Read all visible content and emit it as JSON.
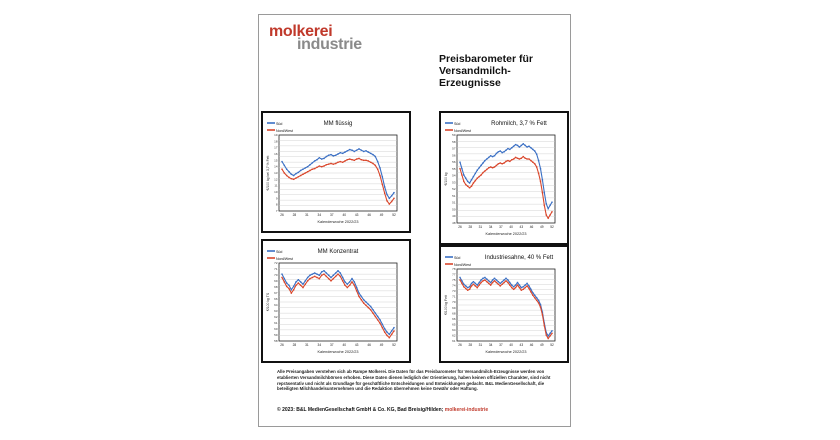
{
  "logo": {
    "line1": "molkerei",
    "line2": "industrie"
  },
  "title": "Preisbarometer für Versandmilch-Erzeugnisse",
  "legend": {
    "south": "Süd",
    "northwest": "Nord/West"
  },
  "colors": {
    "south": "#3a6fc4",
    "northwest": "#d9462b",
    "brand": "#c0392b"
  },
  "charts": [
    {
      "title": "MM flüssig",
      "ylabel": "€/100 kg bei 3,7 % Fett",
      "xlabel": "Kalenderwoche 2022/23",
      "yticks": [
        "19",
        "18",
        "17",
        "16",
        "15",
        "14",
        "13",
        "12",
        "11",
        "10",
        "9",
        "8",
        "7"
      ],
      "xticks": [
        "26",
        "28",
        "31",
        "34",
        "37",
        "40",
        "43",
        "46",
        "49",
        "52"
      ],
      "south": [
        14.8,
        14.2,
        13.6,
        13.2,
        12.8,
        12.6,
        12.9,
        13.1,
        13.4,
        13.6,
        13.8,
        14.0,
        14.3,
        14.6,
        14.9,
        15.1,
        15.4,
        15.2,
        15.3,
        15.6,
        15.8,
        15.9,
        15.7,
        15.8,
        16.0,
        16.2,
        16.1,
        16.3,
        16.5,
        16.7,
        16.6,
        16.4,
        16.6,
        16.8,
        16.6,
        16.4,
        16.5,
        16.3,
        16.1,
        15.9,
        15.6,
        14.8,
        13.8,
        12.4,
        10.8,
        9.6,
        9.0,
        9.4,
        9.9
      ],
      "northwest": [
        13.6,
        13.0,
        12.6,
        12.3,
        12.1,
        12.0,
        12.2,
        12.4,
        12.6,
        12.8,
        13.0,
        13.2,
        13.4,
        13.6,
        13.7,
        13.9,
        14.1,
        14.0,
        14.1,
        14.3,
        14.4,
        14.5,
        14.4,
        14.5,
        14.7,
        14.8,
        14.7,
        14.9,
        15.1,
        15.2,
        15.1,
        15.0,
        15.2,
        15.3,
        15.1,
        15.0,
        15.0,
        14.9,
        14.7,
        14.5,
        14.2,
        13.6,
        12.6,
        11.2,
        9.8,
        8.6,
        8.1,
        8.5,
        9.0
      ],
      "ymin": 7,
      "ymax": 19
    },
    {
      "title": "Rohmilch, 3,7 % Fett",
      "ylabel": "€/100 kg",
      "xlabel": "Kalenderwoche 2022/23",
      "yticks": [],
      "xticks": [
        "26",
        "28",
        "31",
        "34",
        "37",
        "40",
        "43",
        "46",
        "49",
        "52"
      ],
      "south": [
        55.6,
        54.8,
        54.0,
        53.6,
        53.2,
        53.0,
        53.4,
        53.8,
        54.2,
        54.6,
        54.9,
        55.2,
        55.5,
        55.8,
        56.0,
        56.2,
        56.4,
        56.3,
        56.4,
        56.7,
        56.9,
        57.0,
        56.8,
        56.9,
        57.1,
        57.3,
        57.2,
        57.4,
        57.6,
        57.8,
        57.7,
        57.5,
        57.7,
        57.9,
        57.7,
        57.5,
        57.6,
        57.4,
        57.2,
        57.0,
        56.6,
        55.8,
        54.8,
        53.4,
        51.8,
        50.4,
        49.8,
        50.2,
        50.6
      ],
      "northwest": [
        54.8,
        54.0,
        53.2,
        52.8,
        52.6,
        52.4,
        52.6,
        53.0,
        53.3,
        53.6,
        53.8,
        54.0,
        54.3,
        54.5,
        54.7,
        54.9,
        55.0,
        54.9,
        55.0,
        55.2,
        55.4,
        55.5,
        55.4,
        55.5,
        55.7,
        55.8,
        55.7,
        55.9,
        56.0,
        56.2,
        56.1,
        56.0,
        56.1,
        56.3,
        56.1,
        56.0,
        56.0,
        55.8,
        55.6,
        55.4,
        55.0,
        54.2,
        53.2,
        51.8,
        50.2,
        49.0,
        48.6,
        49.0,
        49.4
      ],
      "ymin": 48,
      "ymax": 59
    },
    {
      "title": "MM Konzentrat",
      "ylabel": "€/100 kg TS",
      "xlabel": "Kalenderwoche 2022/23",
      "yticks": [],
      "xticks": [
        "26",
        "28",
        "31",
        "34",
        "37",
        "40",
        "43",
        "46",
        "49",
        "52"
      ],
      "south": [
        70.0,
        69.2,
        68.4,
        68.0,
        67.2,
        67.8,
        68.6,
        69.0,
        68.6,
        68.2,
        68.8,
        69.4,
        69.8,
        70.0,
        70.2,
        70.0,
        69.8,
        70.4,
        70.6,
        70.2,
        69.8,
        69.4,
        69.8,
        70.2,
        70.6,
        70.2,
        69.4,
        68.6,
        68.2,
        68.6,
        69.2,
        68.6,
        67.6,
        66.6,
        66.0,
        65.4,
        65.0,
        64.6,
        64.2,
        63.6,
        63.0,
        62.4,
        61.8,
        61.0,
        60.2,
        59.6,
        59.2,
        59.8,
        60.4
      ],
      "northwest": [
        69.4,
        68.6,
        67.8,
        67.4,
        66.6,
        67.2,
        68.0,
        68.4,
        68.0,
        67.6,
        68.2,
        68.8,
        69.2,
        69.4,
        69.6,
        69.4,
        69.2,
        69.8,
        70.0,
        69.6,
        69.2,
        68.8,
        69.2,
        69.6,
        70.0,
        69.6,
        68.8,
        68.0,
        67.6,
        68.0,
        68.6,
        68.0,
        67.0,
        66.0,
        65.4,
        64.8,
        64.4,
        64.0,
        63.6,
        63.0,
        62.4,
        61.8,
        61.2,
        60.4,
        59.6,
        59.0,
        58.6,
        59.2,
        59.8
      ],
      "ymin": 58,
      "ymax": 72
    },
    {
      "title": "Industriesahne, 40 % Fett",
      "ylabel": "€/100 kg Fett",
      "xlabel": "Kalenderwoche 2022/23",
      "yticks": [],
      "xticks": [
        "26",
        "28",
        "31",
        "34",
        "37",
        "40",
        "43",
        "46",
        "49",
        "52"
      ],
      "south": [
        76.0,
        75.2,
        74.4,
        74.0,
        73.6,
        73.8,
        74.6,
        75.0,
        74.6,
        74.2,
        74.8,
        75.4,
        75.8,
        76.0,
        75.6,
        75.2,
        74.8,
        75.4,
        75.8,
        75.4,
        75.0,
        74.6,
        75.0,
        75.4,
        75.8,
        75.4,
        74.8,
        74.2,
        73.8,
        74.2,
        74.8,
        74.2,
        73.6,
        73.8,
        74.2,
        74.6,
        74.0,
        73.2,
        72.4,
        71.8,
        71.2,
        70.6,
        69.6,
        67.8,
        65.2,
        63.0,
        62.2,
        62.8,
        63.4
      ],
      "northwest": [
        75.4,
        74.6,
        73.8,
        73.4,
        73.0,
        73.2,
        74.0,
        74.4,
        74.0,
        73.6,
        74.2,
        74.8,
        75.2,
        75.4,
        75.0,
        74.6,
        74.2,
        74.8,
        75.2,
        74.8,
        74.4,
        74.0,
        74.4,
        74.8,
        75.2,
        74.8,
        74.2,
        73.6,
        73.2,
        73.6,
        74.2,
        73.6,
        73.0,
        73.2,
        73.6,
        74.0,
        73.4,
        72.6,
        71.8,
        71.2,
        70.6,
        70.0,
        69.0,
        67.2,
        64.6,
        62.4,
        61.6,
        62.2,
        62.8
      ],
      "ymin": 61,
      "ymax": 78
    }
  ],
  "disclaimer": "Alle Preisangaben verstehen sich ab Rampe Molkerei. Die Daten für das Preisbarometer für Versandmilch-Erzeugnisse werden von etablierten Versandmilchbörsen erhoben. Diese Daten dienen lediglich der Orientierung, haben keinen offiziellen Charakter, sind nicht repräsentativ und nicht als Grundlage für geschäftliche Entscheidungen und Entwicklungen gedacht. B&L MedienGesellschaft, die beteiligten Milchhandelsunternehmen und die Redaktion übernehmen keine Gewähr oder Haftung.",
  "copyright": {
    "text": "© 2023: B&L MedienGesellschaft GmbH & Co. KG, Bad Breisig/Hilden;",
    "brand": "molkerei-industrie"
  }
}
